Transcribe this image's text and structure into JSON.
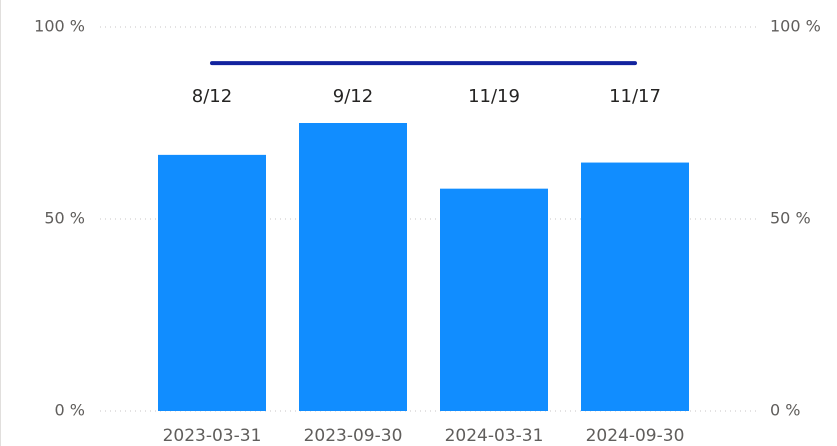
{
  "chart_data": {
    "type": "bar",
    "categories": [
      "2023-03-31",
      "2023-09-30",
      "2024-03-31",
      "2024-09-30"
    ],
    "series": [
      {
        "type": "bar",
        "color": "#118dff",
        "values": [
          66.7,
          75,
          57.9,
          64.7
        ],
        "value_labels": [
          "8/12",
          "9/12",
          "11/19",
          "11/17"
        ]
      },
      {
        "type": "line",
        "axis": "y2",
        "color": "#12239e",
        "values": [
          90.6,
          90.6,
          90.6,
          90.6
        ]
      }
    ],
    "ylim": [
      0,
      100
    ],
    "yticks": [
      {
        "value": 0,
        "label": "0 %"
      },
      {
        "value": 50,
        "label": "50 %"
      },
      {
        "value": 100,
        "label": "100 %"
      }
    ],
    "y2lim": [
      0,
      100
    ],
    "y2ticks": [
      {
        "value": 0,
        "label": "0 %"
      },
      {
        "value": 50,
        "label": "50 %"
      },
      {
        "value": 100,
        "label": "100 %"
      }
    ],
    "grid": true
  }
}
